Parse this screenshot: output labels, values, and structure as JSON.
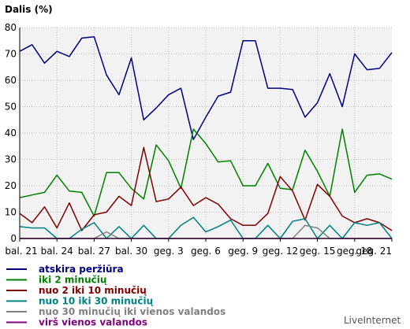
{
  "chart_data": {
    "type": "line",
    "ylabel": "Dalis (%)",
    "ylim": [
      0,
      80
    ],
    "yticks": [
      0,
      10,
      20,
      30,
      40,
      50,
      60,
      70,
      80
    ],
    "grid": true,
    "legend_placement": "bottom-left",
    "x_tick_labels": [
      "bal. 21",
      "bal. 24",
      "bal. 27",
      "bal. 30",
      "geg. 3",
      "geg. 6",
      "geg. 9",
      "geg. 12",
      "geg. 15",
      "geg. 18",
      "geg. 21"
    ],
    "x_tick_index": [
      0,
      3,
      6,
      9,
      12,
      15,
      18,
      21,
      24,
      27,
      30
    ],
    "series": [
      {
        "name": "atskira peržiūra",
        "color": "#000080",
        "values": [
          71,
          73.5,
          66.5,
          71,
          69,
          76,
          76.5,
          62,
          54.5,
          68.5,
          45,
          49.5,
          54.5,
          57,
          37.5,
          46,
          54,
          55.5,
          75,
          75,
          57,
          57,
          56.5,
          46,
          51.5,
          62.5,
          50,
          70,
          64,
          64.5,
          70.5
        ]
      },
      {
        "name": "iki 2 minučių",
        "color": "#008000",
        "values": [
          15.5,
          16.5,
          17.5,
          24,
          18,
          17.5,
          8.5,
          25,
          25,
          19,
          15,
          35.5,
          29.5,
          19,
          41.5,
          36,
          29,
          29.5,
          20,
          20,
          28.5,
          19,
          18.5,
          33.5,
          25.5,
          16,
          41.5,
          17.5,
          24,
          24.5,
          22.5
        ]
      },
      {
        "name": "nuo 2 iki 10 minučių",
        "color": "#800000",
        "values": [
          9.5,
          6,
          12,
          4,
          13.5,
          3,
          9,
          10,
          16,
          12.5,
          34.5,
          14,
          15,
          19.5,
          12.5,
          15.5,
          13,
          7.5,
          5,
          5,
          9.5,
          23.5,
          18,
          7,
          20.5,
          16,
          8.5,
          6,
          7.5,
          6,
          3
        ]
      },
      {
        "name": "nuo 10 iki 30 minučių",
        "color": "#008080",
        "values": [
          4.5,
          4,
          4,
          0,
          0,
          3.5,
          6,
          0,
          4.5,
          0,
          5,
          0,
          0,
          5,
          8,
          2.5,
          4.5,
          7,
          0,
          0,
          5,
          0,
          6.5,
          7.5,
          0,
          5,
          0,
          6,
          5,
          6,
          0
        ]
      },
      {
        "name": "nuo 30 minučių iki vienos valandos",
        "color": "#808080",
        "values": [
          0,
          0,
          0,
          0,
          0,
          0,
          0,
          2.5,
          0,
          0,
          0,
          0,
          0,
          0,
          0,
          0,
          0,
          0,
          0,
          0,
          0,
          0,
          0,
          5,
          4,
          0,
          0,
          0,
          0,
          0,
          0
        ]
      },
      {
        "name": "virš vienos valandos",
        "color": "#800080",
        "values": [
          0,
          0,
          0,
          0,
          0,
          0,
          0,
          0,
          0,
          0,
          0,
          0,
          0,
          0,
          0,
          0,
          0,
          0,
          0,
          0,
          0,
          0,
          0,
          0,
          0,
          0,
          0,
          0,
          0,
          0,
          0
        ]
      }
    ]
  },
  "watermark": "LiveInternet"
}
